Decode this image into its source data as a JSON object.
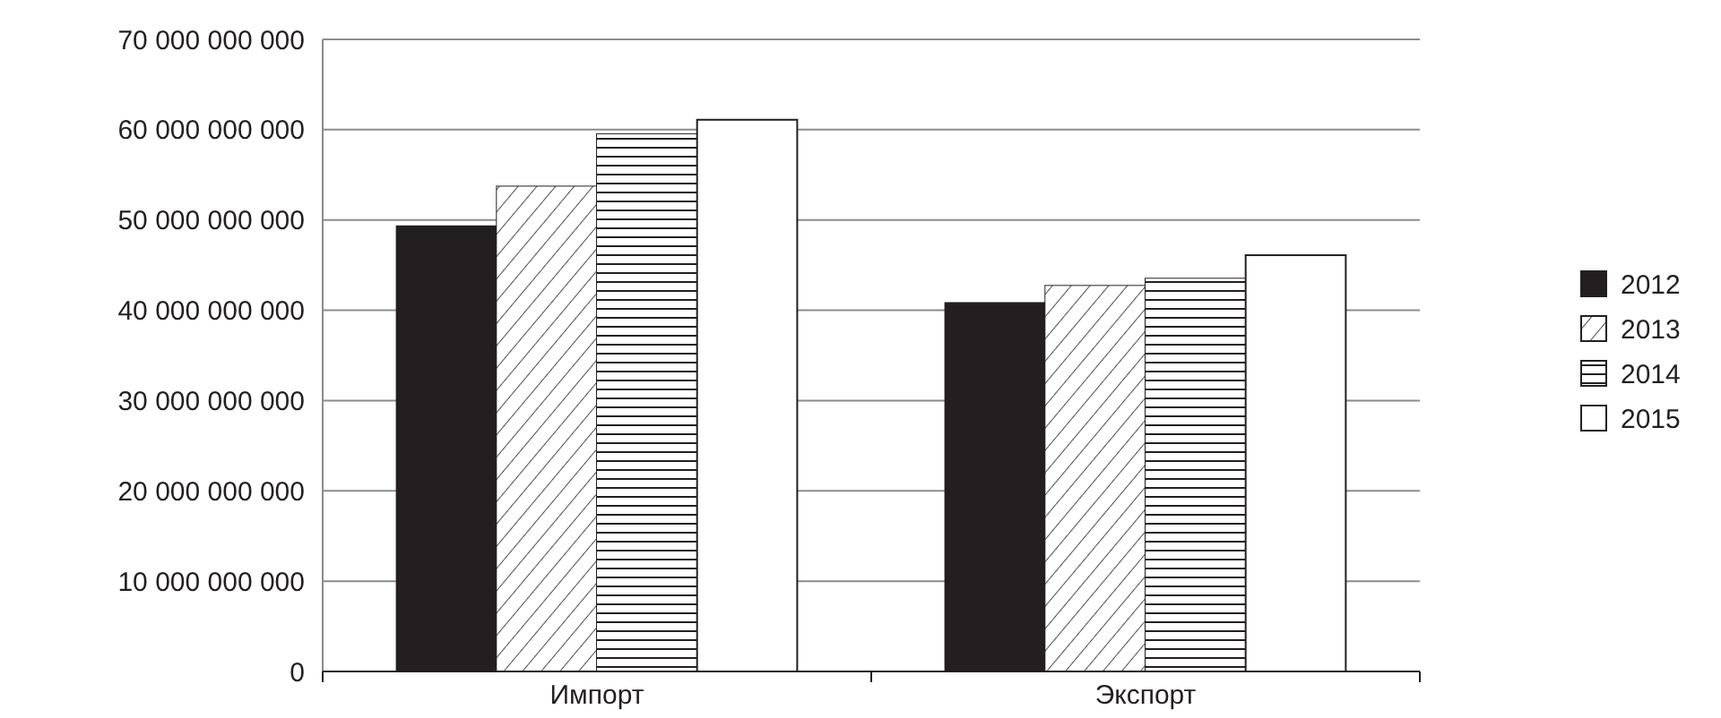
{
  "chart_data": {
    "type": "bar",
    "categories": [
      "Импорт",
      "Экспорт"
    ],
    "series": [
      {
        "name": "2012",
        "color": "#231f20",
        "values": [
          49300000000,
          40800000000
        ]
      },
      {
        "name": "2013",
        "color": "#ffffff",
        "values": [
          53700000000,
          42700000000
        ]
      },
      {
        "name": "2014",
        "color": "#ffffff",
        "values": [
          59500000000,
          43500000000
        ]
      },
      {
        "name": "2015",
        "color": "#ffffff",
        "values": [
          61100000000,
          46100000000
        ]
      }
    ],
    "ylim": [
      0,
      70000000000
    ],
    "yticks": [
      {
        "value": 0,
        "label": "0"
      },
      {
        "value": 10000000000,
        "label": "10 000 000 000"
      },
      {
        "value": 20000000000,
        "label": "20 000 000 000"
      },
      {
        "value": 30000000000,
        "label": "30 000 000 000"
      },
      {
        "value": 40000000000,
        "label": "40 000 000 000"
      },
      {
        "value": 50000000000,
        "label": "50 000 000 000"
      },
      {
        "value": 60000000000,
        "label": "60 000 000 000"
      },
      {
        "value": 70000000000,
        "label": "70 000 000 000"
      }
    ],
    "grid": "y",
    "legend": "right"
  }
}
